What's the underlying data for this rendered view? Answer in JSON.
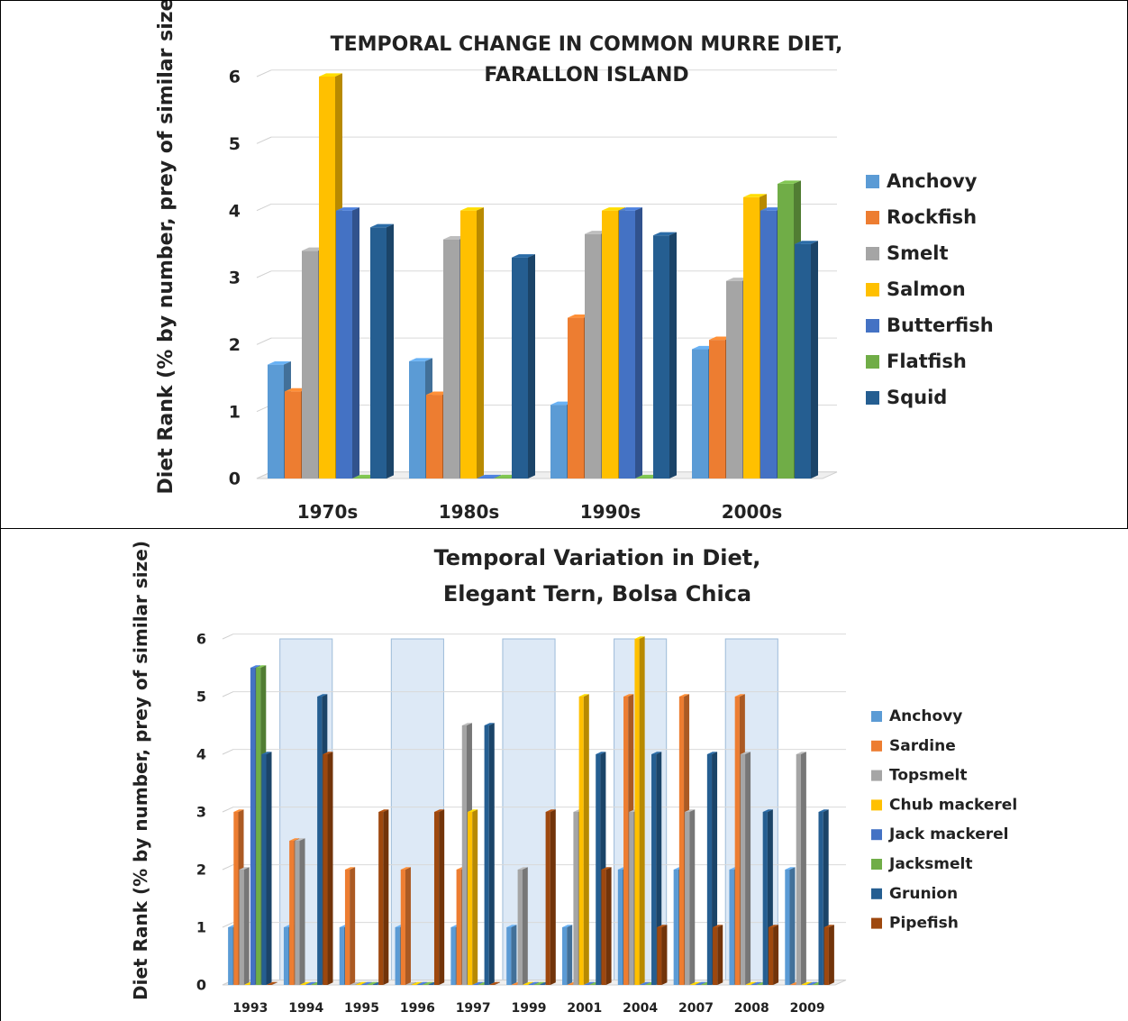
{
  "chart_data": [
    {
      "type": "bar",
      "title_lines": [
        "TEMPORAL CHANGE IN COMMON MURRE DIET,",
        "FARALLON ISLAND"
      ],
      "ylabel": "Diet Rank (% by number, prey of similar size",
      "xlabel": "",
      "ylim": [
        0,
        6
      ],
      "yticks": [
        "0",
        "1",
        "2",
        "3",
        "4",
        "5",
        "6"
      ],
      "grid": true,
      "legend_position": "right",
      "categories": [
        "1970s",
        "1980s",
        "1990s",
        "2000s"
      ],
      "series": [
        {
          "name": "Anchovy",
          "color": "#5b9bd5",
          "values": [
            1.7,
            1.75,
            1.1,
            1.93
          ]
        },
        {
          "name": "Rockfish",
          "color": "#ed7d31",
          "values": [
            1.3,
            1.25,
            2.4,
            2.07
          ]
        },
        {
          "name": "Smelt",
          "color": "#a5a5a5",
          "values": [
            3.4,
            3.57,
            3.65,
            2.95
          ]
        },
        {
          "name": "Salmon",
          "color": "#ffc000",
          "values": [
            6.0,
            4.0,
            4.0,
            4.2
          ]
        },
        {
          "name": "Butterfish",
          "color": "#4472c4",
          "values": [
            4.0,
            0,
            4.0,
            4.0
          ]
        },
        {
          "name": "Flatfish",
          "color": "#70ad47",
          "values": [
            0,
            0,
            0,
            4.4
          ]
        },
        {
          "name": "Squid",
          "color": "#255e91",
          "values": [
            3.75,
            3.3,
            3.63,
            3.5
          ]
        }
      ]
    },
    {
      "type": "bar",
      "title_lines": [
        "Temporal Variation in Diet,",
        "Elegant Tern, Bolsa Chica"
      ],
      "ylabel": "Diet Rank (% by number, prey of similar size)",
      "xlabel": "",
      "ylim": [
        0,
        6
      ],
      "yticks": [
        "0",
        "1",
        "2",
        "3",
        "4",
        "5",
        "6"
      ],
      "grid": true,
      "legend_position": "right",
      "categories": [
        "1993",
        "1994",
        "1995",
        "1996",
        "1997",
        "1999",
        "2001",
        "2004",
        "2007",
        "2008",
        "2009"
      ],
      "shaded_categories": [
        "1994",
        "1996",
        "1999",
        "2004",
        "2008"
      ],
      "series": [
        {
          "name": "Anchovy",
          "color": "#5b9bd5",
          "values": [
            1,
            1,
            1,
            1,
            1,
            1,
            1,
            2,
            2,
            2,
            2
          ]
        },
        {
          "name": "Sardine",
          "color": "#ed7d31",
          "values": [
            3,
            2.5,
            2,
            2,
            2,
            0,
            0,
            5,
            5,
            5,
            0
          ]
        },
        {
          "name": "Topsmelt",
          "color": "#a5a5a5",
          "values": [
            2,
            2.5,
            0,
            0,
            4.5,
            2,
            3,
            3,
            3,
            4,
            4
          ]
        },
        {
          "name": "Chub mackerel",
          "color": "#ffc000",
          "values": [
            0,
            0,
            0,
            0,
            3,
            0,
            5,
            6,
            0,
            0,
            0
          ]
        },
        {
          "name": "Jack mackerel",
          "color": "#4472c4",
          "values": [
            5.5,
            0,
            0,
            0,
            0,
            0,
            0,
            0,
            0,
            0,
            0
          ]
        },
        {
          "name": "Jacksmelt",
          "color": "#70ad47",
          "values": [
            5.5,
            0,
            0,
            0,
            0,
            0,
            0,
            0,
            0,
            0,
            0
          ]
        },
        {
          "name": "Grunion",
          "color": "#255e91",
          "values": [
            4,
            5,
            0,
            0,
            4.5,
            0,
            4,
            4,
            4,
            3,
            3
          ]
        },
        {
          "name": "Pipefish",
          "color": "#9e480e",
          "values": [
            0,
            4,
            3,
            3,
            0,
            3,
            2,
            1,
            1,
            1,
            1
          ]
        }
      ]
    }
  ]
}
